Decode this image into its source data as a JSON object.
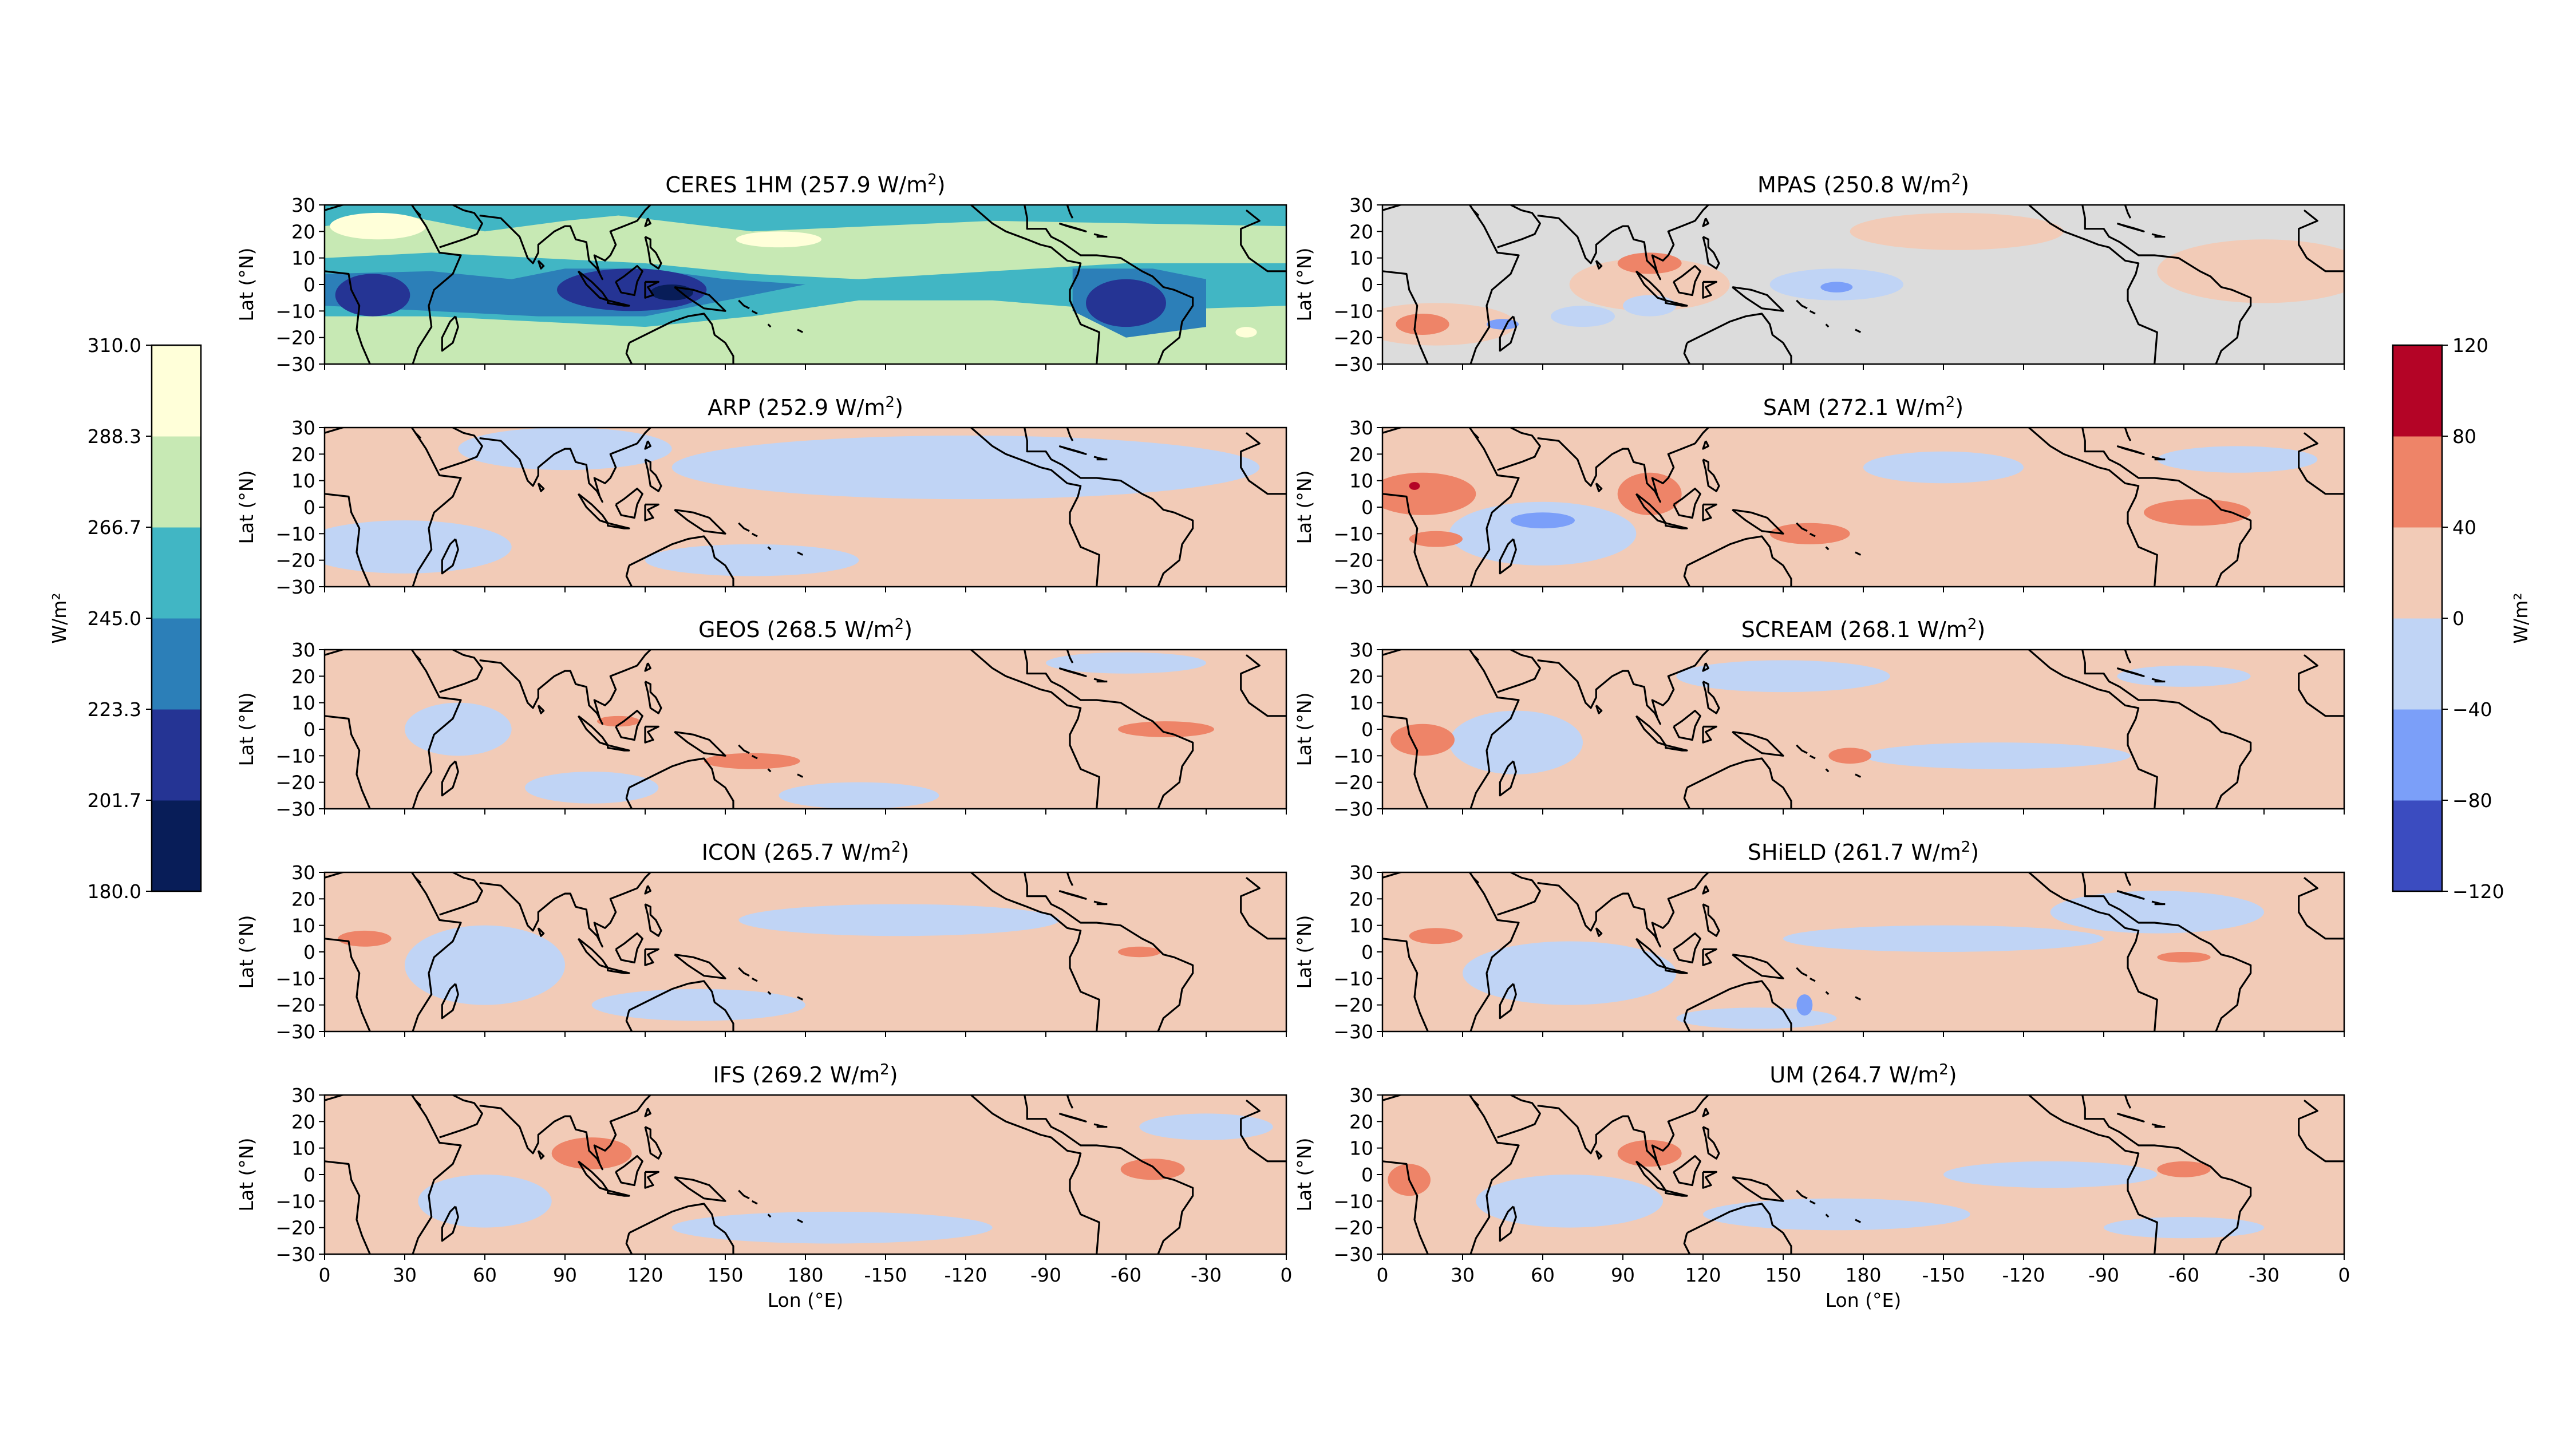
{
  "figure": {
    "lat_label": "Lat (°N)",
    "lon_label": "Lon (°E)",
    "lat_ticks": [
      "30",
      "20",
      "10",
      "0",
      "−10",
      "−20",
      "−30"
    ],
    "lon_ticks": [
      "0",
      "30",
      "60",
      "90",
      "120",
      "150",
      "180",
      "-150",
      "-120",
      "-90",
      "-60",
      "-30",
      "0"
    ]
  },
  "colorbars": {
    "left": {
      "label": "W/m²",
      "ticks": [
        "180.0",
        "201.7",
        "223.3",
        "245.0",
        "266.7",
        "288.3",
        "310.0"
      ],
      "colors": [
        "#081d58",
        "#253494",
        "#2c7fb8",
        "#41b6c4",
        "#c7e9b4",
        "#ffffd9"
      ]
    },
    "right": {
      "label": "W/m²",
      "ticks": [
        "−120",
        "−80",
        "−40",
        "0",
        "40",
        "80",
        "120"
      ],
      "colors": [
        "#3b4cc0",
        "#7b9ff9",
        "#c0d4f5",
        "#f2cbb7",
        "#ee8468",
        "#b40426"
      ]
    }
  },
  "chart_data": [
    {
      "type": "heatmap",
      "name": "CERES 1HM",
      "value": "257.9",
      "units": "W/m²",
      "kind": "absolute",
      "xlim": [
        0,
        360
      ],
      "ylim": [
        -30,
        30
      ]
    },
    {
      "type": "heatmap",
      "name": "MPAS",
      "value": "250.8",
      "units": "W/m²",
      "kind": "difference",
      "xlim": [
        0,
        360
      ],
      "ylim": [
        -30,
        30
      ]
    },
    {
      "type": "heatmap",
      "name": "ARP",
      "value": "252.9",
      "units": "W/m²",
      "kind": "difference",
      "xlim": [
        0,
        360
      ],
      "ylim": [
        -30,
        30
      ]
    },
    {
      "type": "heatmap",
      "name": "SAM",
      "value": "272.1",
      "units": "W/m²",
      "kind": "difference",
      "xlim": [
        0,
        360
      ],
      "ylim": [
        -30,
        30
      ]
    },
    {
      "type": "heatmap",
      "name": "GEOS",
      "value": "268.5",
      "units": "W/m²",
      "kind": "difference",
      "xlim": [
        0,
        360
      ],
      "ylim": [
        -30,
        30
      ]
    },
    {
      "type": "heatmap",
      "name": "SCREAM",
      "value": "268.1",
      "units": "W/m²",
      "kind": "difference",
      "xlim": [
        0,
        360
      ],
      "ylim": [
        -30,
        30
      ]
    },
    {
      "type": "heatmap",
      "name": "ICON",
      "value": "265.7",
      "units": "W/m²",
      "kind": "difference",
      "xlim": [
        0,
        360
      ],
      "ylim": [
        -30,
        30
      ]
    },
    {
      "type": "heatmap",
      "name": "SHiELD",
      "value": "261.7",
      "units": "W/m²",
      "kind": "difference",
      "xlim": [
        0,
        360
      ],
      "ylim": [
        -30,
        30
      ]
    },
    {
      "type": "heatmap",
      "name": "IFS",
      "value": "269.2",
      "units": "W/m²",
      "kind": "difference",
      "xlim": [
        0,
        360
      ],
      "ylim": [
        -30,
        30
      ]
    },
    {
      "type": "heatmap",
      "name": "UM",
      "value": "264.7",
      "units": "W/m²",
      "kind": "difference",
      "xlim": [
        0,
        360
      ],
      "ylim": [
        -30,
        30
      ]
    }
  ]
}
